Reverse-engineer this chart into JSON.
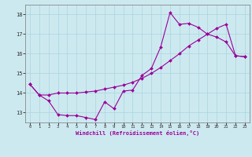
{
  "xlabel": "Windchill (Refroidissement éolien,°C)",
  "bg_color": "#cde9f0",
  "line_color": "#990099",
  "grid_color": "#aad4dd",
  "xlim": [
    -0.5,
    23.5
  ],
  "ylim": [
    12.5,
    18.5
  ],
  "yticks": [
    13,
    14,
    15,
    16,
    17,
    18
  ],
  "xticks": [
    0,
    1,
    2,
    3,
    4,
    5,
    6,
    7,
    8,
    9,
    10,
    11,
    12,
    13,
    14,
    15,
    16,
    17,
    18,
    19,
    20,
    21,
    22,
    23
  ],
  "line1_x": [
    0,
    1,
    2,
    3,
    4,
    5,
    6,
    7,
    8,
    9,
    10,
    11,
    12,
    13,
    14,
    15,
    16,
    17,
    18,
    19,
    20,
    21,
    22,
    23
  ],
  "line1_y": [
    14.45,
    13.9,
    13.6,
    12.9,
    12.85,
    12.85,
    12.75,
    12.65,
    13.55,
    13.2,
    14.1,
    14.15,
    14.9,
    15.25,
    16.35,
    18.1,
    17.5,
    17.55,
    17.35,
    17.0,
    16.85,
    16.6,
    15.9,
    15.85
  ],
  "line2_x": [
    0,
    1,
    2,
    3,
    4,
    5,
    6,
    7,
    8,
    9,
    10,
    11,
    12,
    13,
    14,
    15,
    16,
    17,
    18,
    19,
    20,
    21,
    22,
    23
  ],
  "line2_y": [
    14.45,
    13.9,
    13.9,
    14.0,
    14.0,
    14.0,
    14.05,
    14.1,
    14.2,
    14.3,
    14.4,
    14.55,
    14.75,
    15.0,
    15.3,
    15.65,
    16.0,
    16.4,
    16.7,
    17.0,
    17.3,
    17.5,
    15.9,
    15.85
  ],
  "marker": "D",
  "markersize": 2.0,
  "linewidth": 0.8
}
